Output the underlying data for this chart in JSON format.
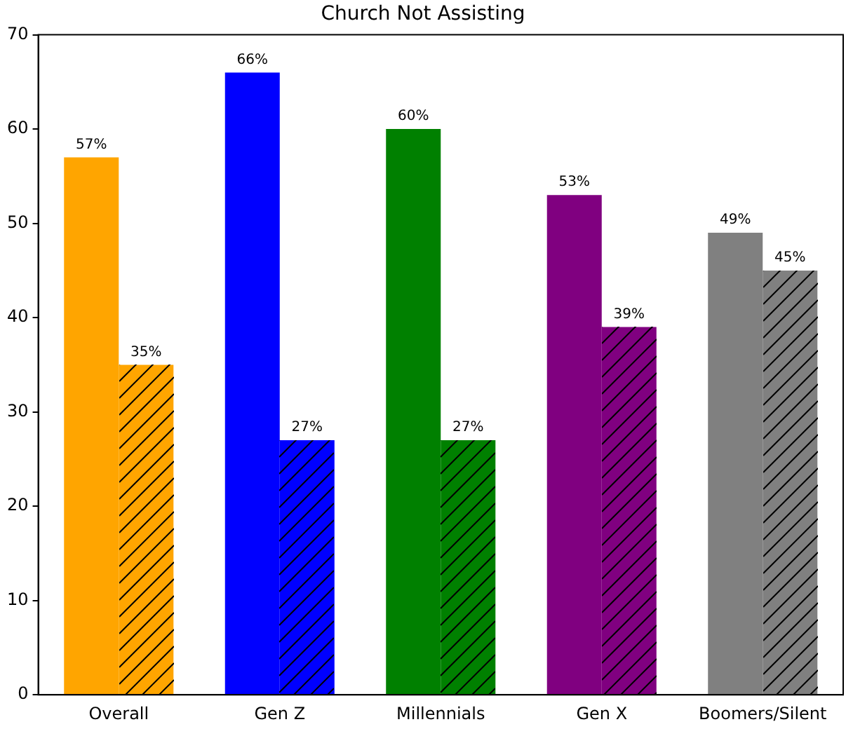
{
  "chart_data": {
    "type": "bar",
    "title": "Church Not Assisting",
    "categories": [
      "Overall",
      "Gen Z",
      "Millennials",
      "Gen X",
      "Boomers/Silent"
    ],
    "series": [
      {
        "colors": [
          "#ffa500",
          "#0000ff",
          "#008000",
          "#800080",
          "#808080"
        ],
        "values": [
          57,
          66,
          60,
          53,
          49
        ],
        "value_labels": [
          "57%",
          "66%",
          "60%",
          "53%",
          "49%"
        ]
      },
      {
        "colors": [
          "#ffa500",
          "#0000ff",
          "#008000",
          "#800080",
          "#808080"
        ],
        "values": [
          35,
          27,
          27,
          39,
          45
        ],
        "value_labels": [
          "35%",
          "27%",
          "27%",
          "39%",
          "45%"
        ]
      }
    ],
    "ylim": [
      0,
      70
    ],
    "yticks": [
      0,
      10,
      20,
      30,
      40,
      50,
      60,
      70
    ],
    "grid": false,
    "legend": false
  }
}
